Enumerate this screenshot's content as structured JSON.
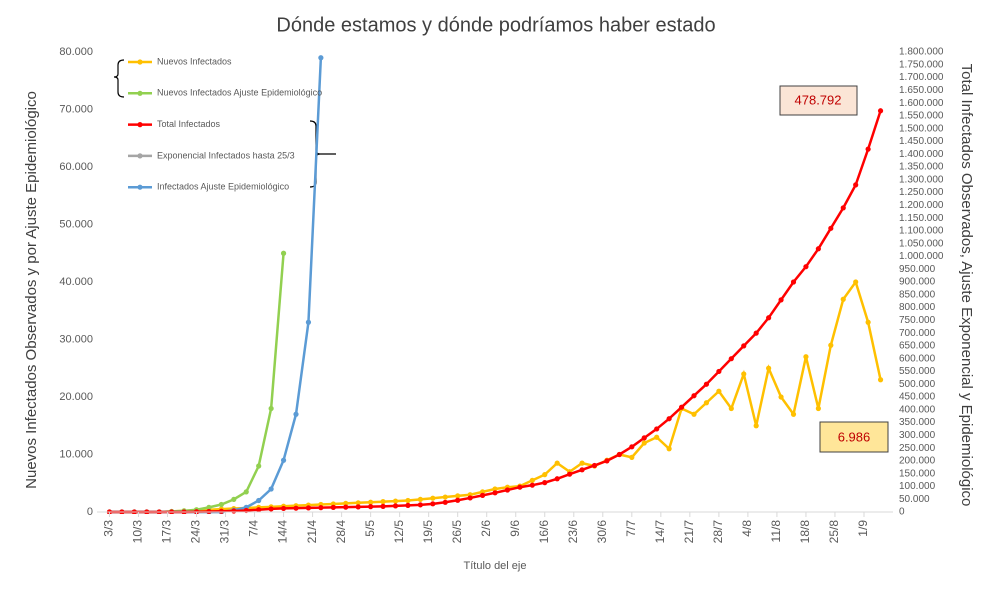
{
  "chart_data": {
    "type": "line",
    "title": "Dónde estamos y dónde podríamos haber estado",
    "x_label": "Título del eje",
    "y_label": "Nuevos Infectados Observados y por Ajuste Epidemiológico",
    "y2_label": "Total Infectados Observados, Ajuste Exponencial y Epidemiológico",
    "annotations": [
      "478.792",
      "6.986"
    ],
    "x": [
      0,
      3,
      6,
      9,
      12,
      15,
      18,
      21,
      24,
      27,
      30,
      33,
      36,
      39,
      42,
      45,
      48,
      51,
      54,
      57,
      60,
      63,
      66,
      69,
      72,
      75,
      78,
      81,
      84,
      87,
      90,
      93,
      96,
      99,
      102,
      105,
      108,
      111,
      114,
      117,
      120,
      123,
      126,
      129,
      132,
      135,
      138,
      141,
      144,
      147,
      150,
      153,
      156,
      159,
      162,
      165,
      168,
      171,
      174,
      177,
      180,
      183,
      186
    ],
    "xlim": [
      -3,
      189
    ],
    "xticks": [
      {
        "value": 0,
        "label": "3/3"
      },
      {
        "value": 7,
        "label": "10/3"
      },
      {
        "value": 14,
        "label": "17/3"
      },
      {
        "value": 21,
        "label": "24/3"
      },
      {
        "value": 28,
        "label": "31/3"
      },
      {
        "value": 35,
        "label": "7/4"
      },
      {
        "value": 42,
        "label": "14/4"
      },
      {
        "value": 49,
        "label": "21/4"
      },
      {
        "value": 56,
        "label": "28/4"
      },
      {
        "value": 63,
        "label": "5/5"
      },
      {
        "value": 70,
        "label": "12/5"
      },
      {
        "value": 77,
        "label": "19/5"
      },
      {
        "value": 84,
        "label": "26/5"
      },
      {
        "value": 91,
        "label": "2/6"
      },
      {
        "value": 98,
        "label": "9/6"
      },
      {
        "value": 105,
        "label": "16/6"
      },
      {
        "value": 112,
        "label": "23/6"
      },
      {
        "value": 119,
        "label": "30/6"
      },
      {
        "value": 126,
        "label": "7/7"
      },
      {
        "value": 133,
        "label": "14/7"
      },
      {
        "value": 140,
        "label": "21/7"
      },
      {
        "value": 147,
        "label": "28/7"
      },
      {
        "value": 154,
        "label": "4/8"
      },
      {
        "value": 161,
        "label": "11/8"
      },
      {
        "value": 168,
        "label": "18/8"
      },
      {
        "value": 175,
        "label": "25/8"
      },
      {
        "value": 182,
        "label": "1/9"
      }
    ],
    "ylim": [
      0,
      80000
    ],
    "yticks": [
      0,
      {
        "value": 10000,
        "label": "10.000"
      },
      {
        "value": 20000,
        "label": "20.000"
      },
      {
        "value": 30000,
        "label": "30.000"
      },
      {
        "value": 40000,
        "label": "40.000"
      },
      {
        "value": 50000,
        "label": "50.000"
      },
      {
        "value": 60000,
        "label": "60.000"
      },
      {
        "value": 70000,
        "label": "70.000"
      },
      {
        "value": 80000,
        "label": "80.000"
      }
    ],
    "y2lim": [
      0,
      1800000
    ],
    "y2ticks": [
      0,
      {
        "value": 50000,
        "label": "50.000"
      },
      {
        "value": 100000,
        "label": "100.000"
      },
      {
        "value": 150000,
        "label": "150.000"
      },
      {
        "value": 200000,
        "label": "200.000"
      },
      {
        "value": 250000,
        "label": "250.000"
      },
      {
        "value": 300000,
        "label": "300.000"
      },
      {
        "value": 350000,
        "label": "350.000"
      },
      {
        "value": 400000,
        "label": "400.000"
      },
      {
        "value": 450000,
        "label": "450.000"
      },
      {
        "value": 500000,
        "label": "500.000"
      },
      {
        "value": 550000,
        "label": "550.000"
      },
      {
        "value": 600000,
        "label": "600.000"
      },
      {
        "value": 650000,
        "label": "650.000"
      },
      {
        "value": 700000,
        "label": "700.000"
      },
      {
        "value": 750000,
        "label": "750.000"
      },
      {
        "value": 800000,
        "label": "800.000"
      },
      {
        "value": 850000,
        "label": "850.000"
      },
      {
        "value": 900000,
        "label": "900.000"
      },
      {
        "value": 950000,
        "label": "950.000"
      },
      {
        "value": 1000000,
        "label": "1.000.000"
      },
      {
        "value": 1050000,
        "label": "1.050.000"
      },
      {
        "value": 1100000,
        "label": "1.100.000"
      },
      {
        "value": 1150000,
        "label": "1.150.000"
      },
      {
        "value": 1200000,
        "label": "1.200.000"
      },
      {
        "value": 1250000,
        "label": "1.250.000"
      },
      {
        "value": 1300000,
        "label": "1.300.000"
      },
      {
        "value": 1350000,
        "label": "1.350.000"
      },
      {
        "value": 1400000,
        "label": "1.400.000"
      },
      {
        "value": 1450000,
        "label": "1.450.000"
      },
      {
        "value": 1500000,
        "label": "1.500.000"
      },
      {
        "value": 1550000,
        "label": "1.550.000"
      },
      {
        "value": 1600000,
        "label": "1.600.000"
      },
      {
        "value": 1650000,
        "label": "1.650.000"
      },
      {
        "value": 1700000,
        "label": "1.700.000"
      },
      {
        "value": 1750000,
        "label": "1.750.000"
      },
      {
        "value": 1800000,
        "label": "1.800.000"
      }
    ],
    "series": [
      {
        "name": "Nuevos Infectados",
        "color": "#ffc000",
        "values": [
          0,
          0,
          0,
          0,
          0,
          100,
          200,
          300,
          400,
          500,
          600,
          700,
          800,
          900,
          1000,
          1100,
          1200,
          1300,
          1400,
          1500,
          1600,
          1700,
          1800,
          1900,
          2000,
          2200,
          2400,
          2600,
          2800,
          3000,
          3500,
          4000,
          4300,
          4500,
          5500,
          6500,
          8500,
          7000,
          8500,
          8000,
          9000,
          10000,
          9500,
          12000,
          13000,
          11000,
          18000,
          17000,
          19000,
          21000,
          18000,
          24000,
          15000,
          25000,
          20000,
          17000,
          27000,
          18000,
          29000,
          37000,
          40000,
          33000,
          23000
        ]
      },
      {
        "name": "Nuevos Infectados Ajuste Epidemiológico",
        "color": "#92d050",
        "values": [
          0,
          0,
          0,
          0,
          0,
          100,
          200,
          400,
          800,
          1300,
          2200,
          3500,
          8000,
          18000,
          45000,
          null,
          null,
          null,
          null,
          null,
          null,
          null,
          null,
          null,
          null,
          null,
          null,
          null,
          null,
          null,
          null,
          null,
          null,
          null,
          null,
          null,
          null,
          null,
          null,
          null,
          null,
          null,
          null,
          null,
          null,
          null,
          null,
          null,
          null,
          null,
          null,
          null,
          null,
          null,
          null,
          null,
          null,
          null,
          null,
          null,
          null,
          null,
          null
        ]
      },
      {
        "name": "Total Infectados",
        "color": "#ff0000",
        "axis": "y2",
        "values": [
          0,
          0,
          0,
          0,
          0,
          0,
          0,
          1000,
          2000,
          3000,
          4000,
          6000,
          9000,
          12000,
          14000,
          15000,
          16000,
          17000,
          18000,
          19000,
          20000,
          21000,
          22000,
          24000,
          26000,
          28000,
          32000,
          38000,
          46000,
          55000,
          65000,
          75000,
          86000,
          97000,
          105000,
          115000,
          130000,
          148000,
          165000,
          182000,
          200000,
          225000,
          255000,
          290000,
          325000,
          365000,
          410000,
          455000,
          500000,
          550000,
          600000,
          650000,
          700000,
          760000,
          830000,
          900000,
          960000,
          1030000,
          1110000,
          1190000,
          1280000,
          1420000,
          1570000
        ]
      },
      {
        "name": "Exponencial Infectados hasta 25/3",
        "color": "#a5a5a5",
        "values": [
          0,
          0,
          0,
          0,
          0,
          0,
          0,
          0,
          0,
          0,
          null,
          null,
          null,
          null,
          null,
          null,
          null,
          null,
          null,
          null,
          null,
          null,
          null,
          null,
          null,
          null,
          null,
          null,
          null,
          null,
          null,
          null,
          null,
          null,
          null,
          null,
          null,
          null,
          null,
          null,
          null,
          null,
          null,
          null,
          null,
          null,
          null,
          null,
          null,
          null,
          null,
          null,
          null,
          null,
          null,
          null,
          null,
          null,
          null,
          null,
          null,
          null,
          null
        ]
      },
      {
        "name": "Infectados Ajuste Epidemiológico",
        "color": "#5b9bd5",
        "values": [
          0,
          0,
          0,
          0,
          0,
          0,
          0,
          0,
          0,
          0,
          300,
          800,
          2000,
          4000,
          9000,
          17000,
          33000,
          79000,
          null,
          null,
          null,
          null,
          null,
          null,
          null,
          null,
          null,
          null,
          null,
          null,
          null,
          null,
          null,
          null,
          null,
          null,
          null,
          null,
          null,
          null,
          null,
          null,
          null,
          null,
          null,
          null,
          null,
          null,
          null,
          null,
          null,
          null,
          null,
          null,
          null,
          null,
          null,
          null,
          null,
          null,
          null,
          null,
          null
        ]
      }
    ]
  }
}
